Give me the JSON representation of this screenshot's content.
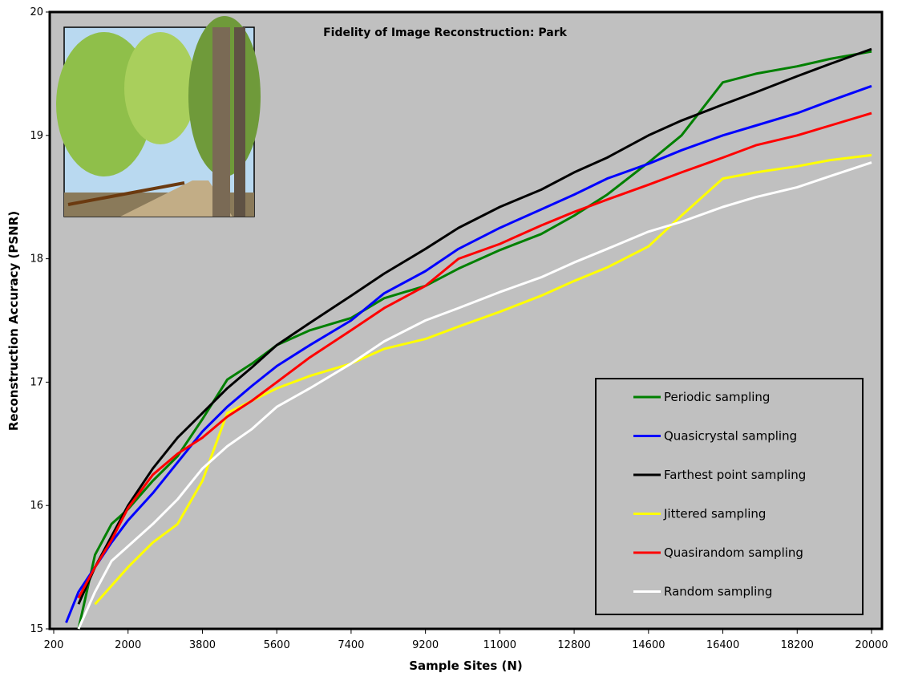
{
  "chart_data": {
    "type": "line",
    "title": "Fidelity of Image Reconstruction: Park",
    "x_label": "Sample Sites (N)",
    "y_label": "Reconstruction Accuracy (PSNR)",
    "x": [
      500,
      800,
      1200,
      1600,
      2000,
      2600,
      3200,
      3800,
      4400,
      5000,
      5600,
      6400,
      7400,
      8200,
      9200,
      10000,
      11000,
      12000,
      12800,
      13600,
      14600,
      15400,
      16400,
      17200,
      18200,
      19000,
      20000
    ],
    "xlim": [
      200,
      20000
    ],
    "xticks": [
      200,
      2000,
      3800,
      5600,
      7400,
      9200,
      11000,
      12800,
      14600,
      16400,
      18200,
      20000
    ],
    "ylim": [
      15,
      20
    ],
    "yticks": [
      15,
      16,
      17,
      18,
      19,
      20
    ],
    "series": [
      {
        "name": "Periodic sampling",
        "color": "#008000",
        "values": [
          null,
          15.0,
          15.6,
          15.85,
          15.97,
          16.2,
          16.4,
          16.7,
          17.02,
          17.15,
          17.3,
          17.42,
          17.52,
          17.68,
          17.78,
          17.92,
          18.07,
          18.2,
          18.35,
          18.52,
          18.78,
          19.0,
          19.43,
          19.5,
          19.56,
          19.62,
          19.68
        ]
      },
      {
        "name": "Quasicrystal sampling",
        "color": "#0000ff",
        "values": [
          15.05,
          15.3,
          15.5,
          15.7,
          15.88,
          16.1,
          16.35,
          16.6,
          16.8,
          16.97,
          17.13,
          17.3,
          17.5,
          17.72,
          17.9,
          18.08,
          18.25,
          18.4,
          18.52,
          18.65,
          18.77,
          18.88,
          19.0,
          19.08,
          19.18,
          19.28,
          19.4
        ]
      },
      {
        "name": "Farthest point sampling",
        "color": "#000000",
        "values": [
          null,
          15.2,
          15.5,
          15.75,
          16.0,
          16.3,
          16.55,
          16.75,
          16.95,
          17.12,
          17.3,
          17.48,
          17.7,
          17.88,
          18.08,
          18.25,
          18.42,
          18.56,
          18.7,
          18.82,
          19.0,
          19.12,
          19.25,
          19.35,
          19.48,
          19.58,
          19.7
        ]
      },
      {
        "name": "Jittered sampling",
        "color": "#ffff00",
        "values": [
          null,
          null,
          15.2,
          15.35,
          15.5,
          15.7,
          15.85,
          16.2,
          16.75,
          16.85,
          16.95,
          17.05,
          17.15,
          17.27,
          17.35,
          17.45,
          17.57,
          17.7,
          17.82,
          17.93,
          18.1,
          18.35,
          18.65,
          18.7,
          18.75,
          18.8,
          18.84
        ]
      },
      {
        "name": "Quasirandom sampling",
        "color": "#ff0000",
        "values": [
          null,
          15.25,
          15.5,
          15.72,
          15.98,
          16.25,
          16.42,
          16.55,
          16.72,
          16.85,
          17.0,
          17.2,
          17.42,
          17.6,
          17.78,
          18.0,
          18.12,
          18.27,
          18.38,
          18.48,
          18.6,
          18.7,
          18.82,
          18.92,
          19.0,
          19.08,
          19.18
        ]
      },
      {
        "name": "Random sampling",
        "color": "#ffffff",
        "values": [
          null,
          15.0,
          15.3,
          15.55,
          15.67,
          15.85,
          16.05,
          16.3,
          16.48,
          16.62,
          16.8,
          16.95,
          17.15,
          17.33,
          17.5,
          17.6,
          17.73,
          17.85,
          17.97,
          18.08,
          18.22,
          18.3,
          18.42,
          18.5,
          18.58,
          18.67,
          18.78
        ]
      }
    ]
  }
}
